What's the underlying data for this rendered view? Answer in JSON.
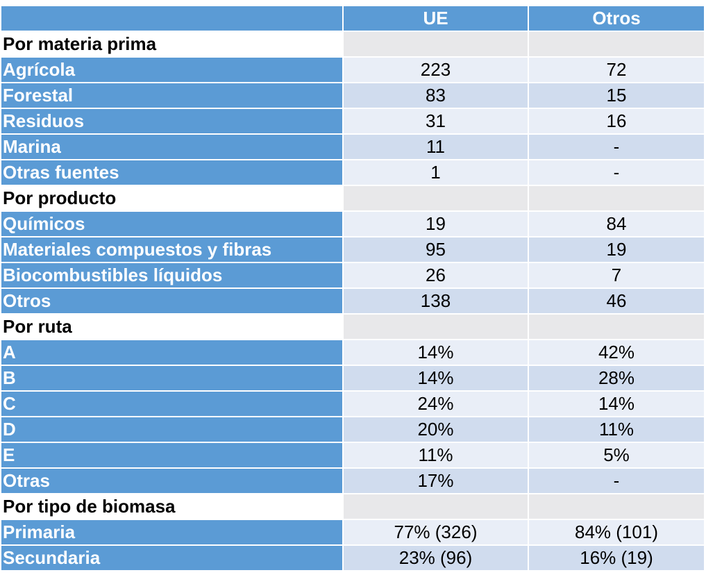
{
  "colors": {
    "header_blue": "#5b9bd5",
    "row_light": "#e9eef7",
    "row_dark": "#d0dcee",
    "section_gray": "#e8e8ea"
  },
  "table": {
    "headers": [
      "",
      "UE",
      "Otros"
    ],
    "sections": [
      {
        "title": "Por materia prima",
        "rows": [
          {
            "label": "Agrícola",
            "ue": "223",
            "otros": "72"
          },
          {
            "label": "Forestal",
            "ue": "83",
            "otros": "15"
          },
          {
            "label": "Residuos",
            "ue": "31",
            "otros": "16"
          },
          {
            "label": "Marina",
            "ue": "11",
            "otros": "-"
          },
          {
            "label": "Otras fuentes",
            "ue": "1",
            "otros": "-"
          }
        ]
      },
      {
        "title": "Por producto",
        "rows": [
          {
            "label": "Químicos",
            "ue": "19",
            "otros": "84"
          },
          {
            "label": "Materiales compuestos y fibras",
            "ue": "95",
            "otros": "19"
          },
          {
            "label": "Biocombustibles  líquidos",
            "ue": "26",
            "otros": "7"
          },
          {
            "label": "Otros",
            "ue": "138",
            "otros": "46"
          }
        ]
      },
      {
        "title": "Por ruta",
        "rows": [
          {
            "label": "A",
            "ue": "14%",
            "otros": "42%"
          },
          {
            "label": "B",
            "ue": "14%",
            "otros": "28%"
          },
          {
            "label": "C",
            "ue": "24%",
            "otros": "14%"
          },
          {
            "label": "D",
            "ue": "20%",
            "otros": "11%"
          },
          {
            "label": "E",
            "ue": "11%",
            "otros": "5%"
          },
          {
            "label": "Otras",
            "ue": "17%",
            "otros": "-"
          }
        ]
      },
      {
        "title": "Por tipo de biomasa",
        "rows": [
          {
            "label": "Primaria",
            "ue": "77% (326)",
            "otros": "84% (101)"
          },
          {
            "label": "Secundaria",
            "ue": "23% (96)",
            "otros": "16% (19)"
          }
        ]
      }
    ]
  }
}
